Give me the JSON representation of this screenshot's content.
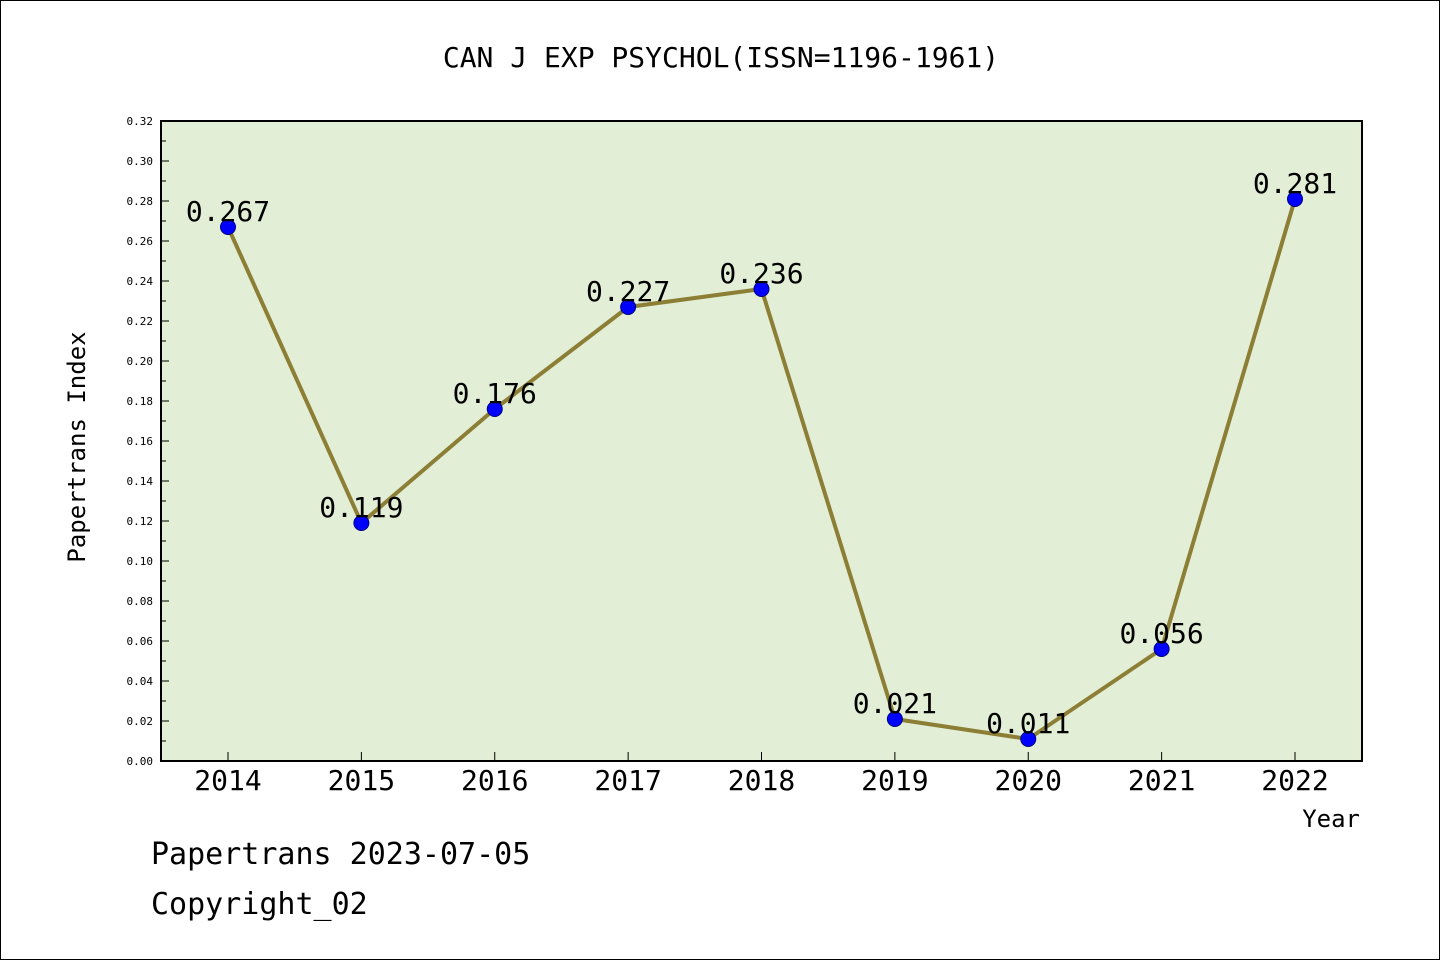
{
  "chart_data": {
    "type": "line",
    "title": "CAN J EXP PSYCHOL(ISSN=1196-1961)",
    "xlabel": "Year",
    "ylabel": "Papertrans Index",
    "categories": [
      "2014",
      "2015",
      "2016",
      "2017",
      "2018",
      "2019",
      "2020",
      "2021",
      "2022"
    ],
    "values": [
      0.267,
      0.119,
      0.176,
      0.227,
      0.236,
      0.021,
      0.011,
      0.056,
      0.281
    ],
    "data_labels": [
      "0.267",
      "0.119",
      "0.176",
      "0.227",
      "0.236",
      "0.021",
      "0.011",
      "0.056",
      "0.281"
    ],
    "ylim": [
      0,
      0.32
    ],
    "yticks": [
      "0.00",
      "0.02",
      "0.04",
      "0.06",
      "0.08",
      "0.10",
      "0.12",
      "0.14",
      "0.16",
      "0.18",
      "0.20",
      "0.22",
      "0.24",
      "0.26",
      "0.28",
      "0.30",
      "0.32"
    ],
    "grid": false,
    "colors": {
      "plot_background": "#e2efd6",
      "line": "#8c7f35",
      "marker": "#0000ff"
    }
  },
  "footer": {
    "date_line": "Papertrans 2023-07-05",
    "copyright": "Copyright_02"
  }
}
